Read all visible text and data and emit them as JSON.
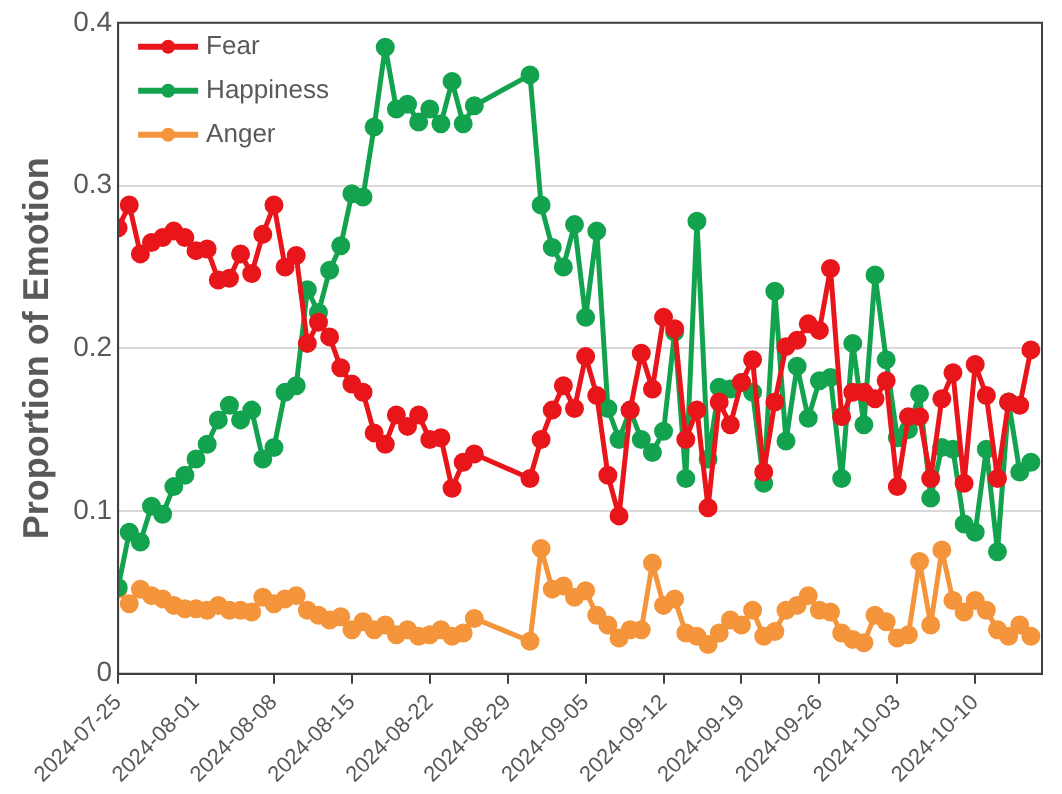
{
  "chart_data": {
    "type": "line",
    "ylabel": "Proportion of Emotion",
    "x": [
      "2024-07-25",
      "2024-07-26",
      "2024-07-27",
      "2024-07-28",
      "2024-07-29",
      "2024-07-30",
      "2024-07-31",
      "2024-08-01",
      "2024-08-02",
      "2024-08-03",
      "2024-08-04",
      "2024-08-05",
      "2024-08-06",
      "2024-08-07",
      "2024-08-08",
      "2024-08-09",
      "2024-08-10",
      "2024-08-11",
      "2024-08-12",
      "2024-08-13",
      "2024-08-14",
      "2024-08-15",
      "2024-08-16",
      "2024-08-17",
      "2024-08-18",
      "2024-08-19",
      "2024-08-20",
      "2024-08-21",
      "2024-08-22",
      "2024-08-23",
      "2024-08-24",
      "2024-08-25",
      "2024-08-26",
      "2024-08-31",
      "2024-09-01",
      "2024-09-02",
      "2024-09-03",
      "2024-09-04",
      "2024-09-05",
      "2024-09-06",
      "2024-09-07",
      "2024-09-08",
      "2024-09-09",
      "2024-09-10",
      "2024-09-11",
      "2024-09-12",
      "2024-09-13",
      "2024-09-14",
      "2024-09-15",
      "2024-09-16",
      "2024-09-17",
      "2024-09-18",
      "2024-09-19",
      "2024-09-20",
      "2024-09-21",
      "2024-09-22",
      "2024-09-23",
      "2024-09-24",
      "2024-09-25",
      "2024-09-26",
      "2024-09-27",
      "2024-09-28",
      "2024-09-29",
      "2024-09-30",
      "2024-10-01",
      "2024-10-02",
      "2024-10-03",
      "2024-10-04",
      "2024-10-05",
      "2024-10-06",
      "2024-10-07",
      "2024-10-08",
      "2024-10-09",
      "2024-10-10",
      "2024-10-11",
      "2024-10-12",
      "2024-10-13",
      "2024-10-14",
      "2024-10-15"
    ],
    "series": [
      {
        "name": "Fear",
        "color": "#e8161b",
        "values": [
          0.274,
          0.288,
          0.258,
          0.265,
          0.268,
          0.272,
          0.268,
          0.26,
          0.261,
          0.242,
          0.243,
          0.258,
          0.246,
          0.27,
          0.288,
          0.25,
          0.257,
          0.203,
          0.216,
          0.207,
          0.188,
          0.178,
          0.173,
          0.148,
          0.141,
          0.159,
          0.152,
          0.159,
          0.144,
          0.145,
          0.114,
          0.13,
          0.135,
          0.12,
          0.144,
          0.162,
          0.177,
          0.163,
          0.195,
          0.171,
          0.122,
          0.097,
          0.162,
          0.197,
          0.175,
          0.219,
          0.212,
          0.144,
          0.162,
          0.102,
          0.167,
          0.153,
          0.179,
          0.193,
          0.124,
          0.167,
          0.201,
          0.205,
          0.215,
          0.211,
          0.249,
          0.158,
          0.173,
          0.173,
          0.169,
          0.18,
          0.115,
          0.158,
          0.158,
          0.12,
          0.169,
          0.185,
          0.117,
          0.19,
          0.171,
          0.12,
          0.167,
          0.165,
          0.199
        ]
      },
      {
        "name": "Happiness",
        "color": "#13a34f",
        "values": [
          0.053,
          0.087,
          0.081,
          0.103,
          0.098,
          0.115,
          0.122,
          0.132,
          0.141,
          0.156,
          0.165,
          0.156,
          0.162,
          0.132,
          0.139,
          0.173,
          0.177,
          0.236,
          0.222,
          0.248,
          0.263,
          0.295,
          0.293,
          0.336,
          0.385,
          0.347,
          0.35,
          0.339,
          0.347,
          0.338,
          0.364,
          0.338,
          0.349,
          0.368,
          0.288,
          0.262,
          0.25,
          0.276,
          0.219,
          0.272,
          0.163,
          0.144,
          0.162,
          0.144,
          0.136,
          0.149,
          0.21,
          0.12,
          0.278,
          0.132,
          0.176,
          0.175,
          0.179,
          0.173,
          0.117,
          0.235,
          0.143,
          0.189,
          0.157,
          0.18,
          0.182,
          0.12,
          0.203,
          0.153,
          0.245,
          0.193,
          0.145,
          0.15,
          0.172,
          0.108,
          0.139,
          0.138,
          0.092,
          0.087,
          0.138,
          0.075,
          0.167,
          0.124,
          0.13
        ]
      },
      {
        "name": "Anger",
        "color": "#f4943b",
        "values": [
          0.052,
          0.043,
          0.052,
          0.048,
          0.046,
          0.042,
          0.04,
          0.04,
          0.039,
          0.042,
          0.039,
          0.039,
          0.038,
          0.047,
          0.043,
          0.046,
          0.048,
          0.039,
          0.036,
          0.033,
          0.035,
          0.027,
          0.032,
          0.027,
          0.03,
          0.024,
          0.027,
          0.023,
          0.024,
          0.027,
          0.023,
          0.025,
          0.034,
          0.02,
          0.077,
          0.052,
          0.054,
          0.047,
          0.051,
          0.036,
          0.03,
          0.022,
          0.027,
          0.027,
          0.068,
          0.042,
          0.046,
          0.025,
          0.023,
          0.018,
          0.025,
          0.033,
          0.03,
          0.039,
          0.023,
          0.026,
          0.039,
          0.042,
          0.048,
          0.039,
          0.038,
          0.025,
          0.021,
          0.019,
          0.036,
          0.032,
          0.022,
          0.024,
          0.069,
          0.03,
          0.076,
          0.045,
          0.038,
          0.045,
          0.039,
          0.027,
          0.023,
          0.03,
          0.023
        ]
      }
    ],
    "xlim": [
      "2024-07-25",
      "2024-10-16"
    ],
    "xticks": [
      "2024-07-25",
      "2024-08-01",
      "2024-08-08",
      "2024-08-15",
      "2024-08-22",
      "2024-08-29",
      "2024-09-05",
      "2024-09-12",
      "2024-09-19",
      "2024-09-26",
      "2024-10-03",
      "2024-10-10"
    ],
    "ylim": [
      0,
      0.4
    ],
    "yticks": [
      0,
      0.1,
      0.2,
      0.3,
      0.4
    ],
    "grid": "y",
    "legend": "top left",
    "marker": "circle",
    "line_style": "solid"
  }
}
